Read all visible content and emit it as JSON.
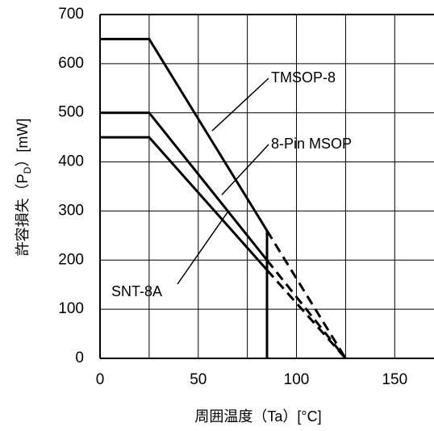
{
  "chart_data": {
    "type": "line",
    "title": "",
    "xlabel": "周囲温度（Ta）[°C]",
    "ylabel_parts": {
      "prefix": "許容損失（P",
      "subscript": "D",
      "suffix": "）[mW]"
    },
    "xlim": [
      0,
      170
    ],
    "ylim": [
      0,
      700
    ],
    "x_ticks": [
      0,
      50,
      100,
      150
    ],
    "y_ticks": [
      0,
      100,
      200,
      300,
      400,
      500,
      600,
      700
    ],
    "x_gridlines": [
      0,
      25,
      50,
      75,
      100,
      125,
      150
    ],
    "y_gridlines": [
      0,
      100,
      200,
      300,
      400,
      500,
      600,
      700
    ],
    "grid": true,
    "series": [
      {
        "name": "TMSOP-8",
        "solid": [
          [
            0,
            650
          ],
          [
            25,
            650
          ],
          [
            85,
            260
          ]
        ],
        "dashed": [
          [
            85,
            260
          ],
          [
            125,
            0
          ]
        ],
        "cutoff": [
          [
            85,
            260
          ],
          [
            85,
            0
          ]
        ]
      },
      {
        "name": "8-Pin MSOP",
        "solid": [
          [
            0,
            500
          ],
          [
            25,
            500
          ],
          [
            85,
            200
          ]
        ],
        "dashed": [
          [
            85,
            200
          ],
          [
            125,
            0
          ]
        ]
      },
      {
        "name": "SNT-8A",
        "solid": [
          [
            0,
            450
          ],
          [
            25,
            450
          ],
          [
            85,
            180
          ]
        ],
        "dashed": [
          [
            85,
            180
          ],
          [
            125,
            0
          ]
        ]
      }
    ],
    "annotations": [
      {
        "text": "TMSOP-8",
        "target": [
          57,
          463
        ]
      },
      {
        "text": "8-Pin MSOP",
        "target": [
          62,
          333
        ]
      },
      {
        "text": "SNT-8A",
        "target": [
          65,
          298
        ]
      }
    ]
  }
}
